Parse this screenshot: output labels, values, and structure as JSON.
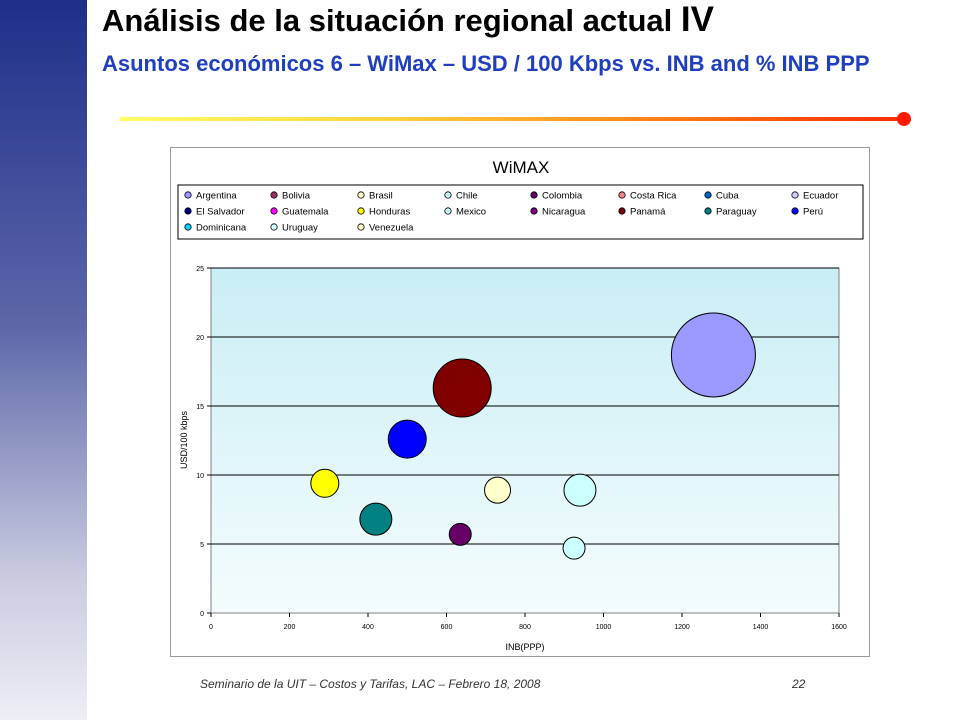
{
  "slide": {
    "title": "Análisis de la situación regional actual",
    "title_suffix": "IV",
    "subtitle": "Asuntos económicos 6 – WiMax – USD / 100 Kbps vs. INB and % INB PPP",
    "footer": "Seminario de la UIT – Costos y Tarifas, LAC – Febrero 18, 2008",
    "page_number": "22"
  },
  "colors": {
    "left_bar": "#3a448f",
    "subtitle": "#1f3fbf",
    "plot_bg_top": "#c9eef5",
    "plot_bg_bottom": "#f4fcfd"
  },
  "chart_data": {
    "type": "bubble",
    "title": "WiMAX",
    "xlabel": "INB(PPP)",
    "ylabel": "USD/100 kbps",
    "xlim": [
      0,
      1600
    ],
    "ylim": [
      0,
      25
    ],
    "xticks": [
      0,
      200,
      400,
      600,
      800,
      1000,
      1200,
      1400,
      1600
    ],
    "yticks": [
      0,
      5,
      10,
      15,
      20,
      25
    ],
    "grid": "horizontal",
    "legend_position": "top",
    "legend": [
      {
        "name": "Argentina",
        "color": "#9999ff"
      },
      {
        "name": "Bolivia",
        "color": "#993366"
      },
      {
        "name": "Brasil",
        "color": "#ffffcc"
      },
      {
        "name": "Chile",
        "color": "#ccffff"
      },
      {
        "name": "Colombia",
        "color": "#660066"
      },
      {
        "name": "Costa Rica",
        "color": "#ff8080"
      },
      {
        "name": "Cuba",
        "color": "#0066cc"
      },
      {
        "name": "Ecuador",
        "color": "#ccccff"
      },
      {
        "name": "El Salvador",
        "color": "#000080"
      },
      {
        "name": "Guatemala",
        "color": "#ff00ff"
      },
      {
        "name": "Honduras",
        "color": "#ffff00"
      },
      {
        "name": "Mexico",
        "color": "#ccffff"
      },
      {
        "name": "Nicaragua",
        "color": "#800080"
      },
      {
        "name": "Panamá",
        "color": "#800000"
      },
      {
        "name": "Paraguay",
        "color": "#008080"
      },
      {
        "name": "Perú",
        "color": "#0000ff"
      },
      {
        "name": "Dominicana",
        "color": "#00ccff"
      },
      {
        "name": "Uruguay",
        "color": "#ccffff"
      },
      {
        "name": "Venezuela",
        "color": "#ffffcc"
      }
    ],
    "points": [
      {
        "x": 1280,
        "y": 18.7,
        "r": 42,
        "color": "#9999ff"
      },
      {
        "x": 640,
        "y": 16.3,
        "r": 29,
        "color": "#800000"
      },
      {
        "x": 500,
        "y": 12.6,
        "r": 19,
        "color": "#0000ff"
      },
      {
        "x": 290,
        "y": 9.4,
        "r": 14,
        "color": "#ffff00"
      },
      {
        "x": 420,
        "y": 6.8,
        "r": 16,
        "color": "#008080"
      },
      {
        "x": 635,
        "y": 5.7,
        "r": 11,
        "color": "#660066"
      },
      {
        "x": 730,
        "y": 8.9,
        "r": 13,
        "color": "#ffffcc"
      },
      {
        "x": 940,
        "y": 8.9,
        "r": 16,
        "color": "#ccffff"
      },
      {
        "x": 925,
        "y": 4.7,
        "r": 11,
        "color": "#ccffff"
      }
    ]
  }
}
